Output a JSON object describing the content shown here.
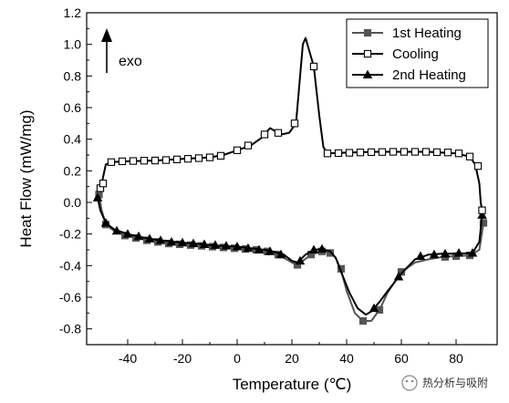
{
  "chart_data": {
    "type": "line",
    "title": "",
    "xlabel": "Temperature (℃)",
    "ylabel": "Heat Flow (mW/mg)",
    "xlim": [
      -55,
      95
    ],
    "ylim": [
      -0.9,
      1.2
    ],
    "xticks": [
      -40,
      -20,
      0,
      20,
      40,
      60,
      80
    ],
    "xtick_labels": [
      "-40",
      "-20",
      "0",
      "20",
      "40",
      "60",
      "80"
    ],
    "yticks": [
      -0.8,
      -0.6,
      -0.4,
      -0.2,
      0.0,
      0.2,
      0.4,
      0.6,
      0.8,
      1.0,
      1.2
    ],
    "ytick_labels": [
      "-0.8",
      "-0.6",
      "-0.4",
      "-0.2",
      "0.0",
      "0.2",
      "0.4",
      "0.6",
      "0.8",
      "1.0",
      "1.2"
    ],
    "grid": false,
    "legend_position": "top-right",
    "annotation": {
      "text": "exo",
      "arrow_direction": "up"
    },
    "watermark": "热分析与吸附",
    "series": [
      {
        "name": "1st Heating",
        "color": "#555555",
        "marker": "filled-square",
        "points": [
          [
            90,
            -0.13
          ],
          [
            88.5,
            -0.3
          ],
          [
            85,
            -0.335
          ],
          [
            80,
            -0.34
          ],
          [
            75,
            -0.345
          ],
          [
            70,
            -0.36
          ],
          [
            65,
            -0.38
          ],
          [
            60,
            -0.44
          ],
          [
            55,
            -0.57
          ],
          [
            52,
            -0.68
          ],
          [
            49,
            -0.75
          ],
          [
            46,
            -0.75
          ],
          [
            43,
            -0.7
          ],
          [
            40,
            -0.56
          ],
          [
            38,
            -0.43
          ],
          [
            36,
            -0.35
          ],
          [
            34,
            -0.315
          ],
          [
            31,
            -0.31
          ],
          [
            27,
            -0.33
          ],
          [
            24,
            -0.37
          ],
          [
            21.5,
            -0.395
          ],
          [
            19,
            -0.37
          ],
          [
            15,
            -0.33
          ],
          [
            10,
            -0.31
          ],
          [
            5,
            -0.3
          ],
          [
            0,
            -0.29
          ],
          [
            -5,
            -0.285
          ],
          [
            -10,
            -0.28
          ],
          [
            -15,
            -0.27
          ],
          [
            -20,
            -0.265
          ],
          [
            -25,
            -0.255
          ],
          [
            -30,
            -0.245
          ],
          [
            -35,
            -0.23
          ],
          [
            -40,
            -0.21
          ],
          [
            -45,
            -0.18
          ],
          [
            -48,
            -0.14
          ],
          [
            -49.5,
            -0.05
          ],
          [
            -50,
            0.0
          ],
          [
            -50.5,
            0.05
          ]
        ],
        "markers": [
          [
            90,
            -0.13
          ],
          [
            85,
            -0.335
          ],
          [
            80,
            -0.34
          ],
          [
            76,
            -0.345
          ],
          [
            60,
            -0.44
          ],
          [
            52,
            -0.68
          ],
          [
            46,
            -0.75
          ],
          [
            38,
            -0.42
          ],
          [
            34,
            -0.32
          ],
          [
            31,
            -0.31
          ],
          [
            27,
            -0.33
          ],
          [
            22,
            -0.395
          ],
          [
            15,
            -0.33
          ],
          [
            11,
            -0.31
          ],
          [
            7,
            -0.3
          ],
          [
            3,
            -0.295
          ],
          [
            -1,
            -0.29
          ],
          [
            -5,
            -0.285
          ],
          [
            -9,
            -0.28
          ],
          [
            -13,
            -0.275
          ],
          [
            -17,
            -0.27
          ],
          [
            -21,
            -0.265
          ],
          [
            -25,
            -0.26
          ],
          [
            -29,
            -0.25
          ],
          [
            -33,
            -0.24
          ],
          [
            -37,
            -0.225
          ],
          [
            -41,
            -0.21
          ],
          [
            -48,
            -0.14
          ],
          [
            -50.5,
            0.05
          ]
        ]
      },
      {
        "name": "Cooling",
        "color": "#000000",
        "marker": "open-square",
        "points": [
          [
            -49.5,
            0.12
          ],
          [
            -48,
            0.24
          ],
          [
            -46,
            0.255
          ],
          [
            -40,
            0.26
          ],
          [
            -30,
            0.265
          ],
          [
            -20,
            0.275
          ],
          [
            -10,
            0.285
          ],
          [
            -5,
            0.3
          ],
          [
            0,
            0.33
          ],
          [
            5,
            0.36
          ],
          [
            9,
            0.41
          ],
          [
            12,
            0.47
          ],
          [
            14,
            0.45
          ],
          [
            16,
            0.43
          ],
          [
            19,
            0.44
          ],
          [
            21.5,
            0.5
          ],
          [
            23,
            0.8
          ],
          [
            24,
            1.0
          ],
          [
            25,
            1.04
          ],
          [
            26,
            0.98
          ],
          [
            28,
            0.86
          ],
          [
            30,
            0.55
          ],
          [
            31.5,
            0.35
          ],
          [
            33,
            0.31
          ],
          [
            40,
            0.315
          ],
          [
            50,
            0.32
          ],
          [
            60,
            0.32
          ],
          [
            70,
            0.32
          ],
          [
            80,
            0.31
          ],
          [
            85,
            0.29
          ],
          [
            87,
            0.24
          ],
          [
            88.5,
            0.12
          ],
          [
            89,
            0.0
          ],
          [
            89.5,
            -0.05
          ]
        ],
        "markers": [
          [
            -50,
            0.09
          ],
          [
            -49,
            0.12
          ],
          [
            -46,
            0.255
          ],
          [
            -42,
            0.26
          ],
          [
            -38,
            0.262
          ],
          [
            -34,
            0.264
          ],
          [
            -30,
            0.265
          ],
          [
            -26,
            0.268
          ],
          [
            -22,
            0.272
          ],
          [
            -18,
            0.276
          ],
          [
            -14,
            0.28
          ],
          [
            -10,
            0.285
          ],
          [
            -6,
            0.295
          ],
          [
            0,
            0.33
          ],
          [
            4,
            0.36
          ],
          [
            10,
            0.43
          ],
          [
            15,
            0.44
          ],
          [
            21,
            0.5
          ],
          [
            28,
            0.86
          ],
          [
            33,
            0.31
          ],
          [
            37,
            0.312
          ],
          [
            41,
            0.314
          ],
          [
            45,
            0.316
          ],
          [
            49,
            0.318
          ],
          [
            53,
            0.319
          ],
          [
            57,
            0.32
          ],
          [
            61,
            0.32
          ],
          [
            65,
            0.32
          ],
          [
            69,
            0.32
          ],
          [
            73,
            0.318
          ],
          [
            77,
            0.316
          ],
          [
            81,
            0.31
          ],
          [
            85,
            0.29
          ],
          [
            88,
            0.23
          ],
          [
            89.5,
            -0.05
          ]
        ]
      },
      {
        "name": "2nd Heating",
        "color": "#000000",
        "marker": "filled-triangle",
        "points": [
          [
            89.5,
            -0.08
          ],
          [
            88.5,
            -0.25
          ],
          [
            86,
            -0.32
          ],
          [
            80,
            -0.325
          ],
          [
            75,
            -0.325
          ],
          [
            70,
            -0.33
          ],
          [
            65,
            -0.36
          ],
          [
            60,
            -0.45
          ],
          [
            55,
            -0.56
          ],
          [
            52,
            -0.63
          ],
          [
            49,
            -0.69
          ],
          [
            47,
            -0.71
          ],
          [
            44,
            -0.67
          ],
          [
            41,
            -0.57
          ],
          [
            38,
            -0.44
          ],
          [
            36,
            -0.35
          ],
          [
            34,
            -0.31
          ],
          [
            31,
            -0.295
          ],
          [
            28,
            -0.3
          ],
          [
            25,
            -0.33
          ],
          [
            22,
            -0.38
          ],
          [
            20,
            -0.37
          ],
          [
            17,
            -0.33
          ],
          [
            13,
            -0.31
          ],
          [
            10,
            -0.3
          ],
          [
            5,
            -0.29
          ],
          [
            0,
            -0.28
          ],
          [
            -5,
            -0.275
          ],
          [
            -10,
            -0.27
          ],
          [
            -15,
            -0.26
          ],
          [
            -20,
            -0.255
          ],
          [
            -25,
            -0.245
          ],
          [
            -30,
            -0.235
          ],
          [
            -35,
            -0.22
          ],
          [
            -40,
            -0.2
          ],
          [
            -45,
            -0.17
          ],
          [
            -48,
            -0.13
          ],
          [
            -50,
            -0.05
          ],
          [
            -51,
            0.03
          ]
        ],
        "markers": [
          [
            89.5,
            -0.08
          ],
          [
            86,
            -0.32
          ],
          [
            81,
            -0.32
          ],
          [
            76,
            -0.325
          ],
          [
            72,
            -0.33
          ],
          [
            67,
            -0.34
          ],
          [
            59,
            -0.47
          ],
          [
            50,
            -0.67
          ],
          [
            31,
            -0.295
          ],
          [
            28,
            -0.3
          ],
          [
            23,
            -0.37
          ],
          [
            16,
            -0.33
          ],
          [
            12,
            -0.31
          ],
          [
            8,
            -0.3
          ],
          [
            4,
            -0.29
          ],
          [
            0,
            -0.28
          ],
          [
            -4,
            -0.275
          ],
          [
            -8,
            -0.27
          ],
          [
            -12,
            -0.265
          ],
          [
            -16,
            -0.26
          ],
          [
            -20,
            -0.255
          ],
          [
            -24,
            -0.25
          ],
          [
            -28,
            -0.24
          ],
          [
            -32,
            -0.23
          ],
          [
            -36,
            -0.215
          ],
          [
            -40,
            -0.2
          ],
          [
            -44,
            -0.18
          ],
          [
            -48,
            -0.13
          ],
          [
            -51,
            0.03
          ]
        ]
      }
    ]
  }
}
